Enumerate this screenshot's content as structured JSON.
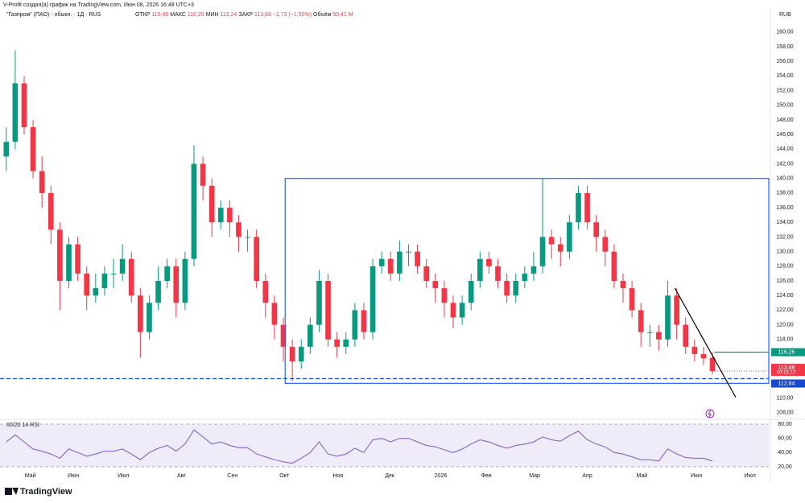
{
  "attribution": "V-Profit создал(а) график на TradingView.com, Июн 08, 2026 16:48 UTC+3",
  "logo": "TradingView",
  "chart_data": [
    {
      "type": "candlestick",
      "title": "\"Газпром\" (ПАО) - обыкн. · 1Д · RUS",
      "legend": [
        {
          "label": "ОТКР",
          "value": "115,49"
        },
        {
          "label": "МАКС",
          "value": "116,25"
        },
        {
          "label": "МИН",
          "value": "113,24"
        },
        {
          "label": "ЗАКР",
          "value": "113,68"
        }
      ],
      "change": "−1,73 (−1,50%)",
      "volume_label": "Объём",
      "volume": "50,41 M",
      "unit": "RUB",
      "up_color": "#089981",
      "down_color": "#f23645",
      "open": [
        143,
        145,
        153,
        147,
        141,
        138,
        133,
        126,
        131,
        127,
        124,
        125,
        127,
        127,
        129,
        124,
        119,
        123,
        126,
        128,
        123,
        129,
        142,
        139,
        134,
        136,
        134,
        132,
        132,
        126,
        123,
        120,
        117,
        115,
        117,
        120,
        126,
        118,
        117,
        118,
        122,
        119,
        128,
        129,
        127,
        130,
        130,
        128,
        126,
        125,
        123,
        121,
        123,
        126,
        129,
        128,
        126,
        124,
        126,
        127,
        128,
        132,
        131,
        130,
        134,
        138,
        134,
        132,
        130,
        126,
        125,
        122,
        119,
        119,
        118,
        124,
        120,
        117,
        116,
        115.49
      ],
      "high": [
        147,
        157.5,
        154,
        148,
        143,
        139,
        134,
        132,
        132,
        128,
        127,
        128,
        129,
        131,
        130,
        125,
        124,
        128,
        129,
        129,
        130,
        144.5,
        143,
        140,
        137,
        137,
        135,
        133,
        133,
        127,
        124,
        121,
        118,
        118,
        121,
        127.5,
        127,
        119,
        119,
        123,
        123,
        129,
        130,
        130,
        131.5,
        131,
        131,
        129,
        127,
        126,
        124,
        124,
        127,
        130,
        130,
        129,
        127,
        127,
        128,
        130,
        140,
        133,
        132,
        135,
        139,
        139,
        135,
        133,
        131,
        127,
        126,
        123,
        120,
        120,
        126,
        125,
        121,
        118,
        117,
        116.25
      ],
      "low": [
        141,
        144,
        146,
        140,
        136,
        131,
        122,
        125,
        126,
        122,
        123,
        124,
        125,
        126,
        123,
        115.5,
        118,
        122,
        125,
        121,
        122,
        128,
        137,
        132,
        133,
        132,
        130,
        130,
        125,
        121,
        118,
        115,
        112.3,
        114,
        116,
        119,
        117,
        115.5,
        116,
        117,
        118,
        118,
        127,
        126,
        126,
        128,
        127,
        125,
        123,
        121,
        119.5,
        120,
        122,
        125,
        127,
        125,
        123,
        123,
        125,
        126,
        127,
        129,
        128,
        129,
        133,
        133,
        130,
        128,
        125,
        123,
        121,
        117,
        117,
        116.5,
        117,
        118,
        116,
        115,
        114.5,
        113.24
      ],
      "close": [
        145,
        153,
        147,
        141,
        138,
        133,
        126,
        131,
        127,
        124,
        125,
        127,
        127,
        129,
        124,
        119,
        123,
        126,
        128,
        123,
        129,
        142,
        139,
        134,
        136,
        134,
        132,
        132,
        126,
        123,
        120,
        117,
        115,
        117,
        120,
        126,
        118,
        117,
        118,
        122,
        119,
        128,
        129,
        127,
        130,
        130,
        128,
        126,
        125,
        123,
        121,
        123,
        126,
        129,
        128,
        126,
        124,
        126,
        127,
        128,
        132,
        131,
        130,
        134,
        138,
        134,
        132,
        130,
        126,
        125,
        122,
        119,
        119,
        118,
        124,
        120,
        117,
        116,
        115.41,
        113.68
      ],
      "xlim": [
        -0.7,
        85.3
      ],
      "xticks": [
        {
          "value": 2.7,
          "label": "Май"
        },
        {
          "value": 7.5,
          "label": "Июн"
        },
        {
          "value": 13.1,
          "label": "Июл"
        },
        {
          "value": 19.6,
          "label": "Авг"
        },
        {
          "value": 25.3,
          "label": "Сен"
        },
        {
          "value": 31.1,
          "label": "Окт"
        },
        {
          "value": 37.1,
          "label": "Ноя"
        },
        {
          "value": 42.9,
          "label": "Дек"
        },
        {
          "value": 48.6,
          "label": "2026"
        },
        {
          "value": 53.7,
          "label": "Фев"
        },
        {
          "value": 59.1,
          "label": "Мар"
        },
        {
          "value": 65,
          "label": "Апр"
        },
        {
          "value": 71.1,
          "label": "Май"
        },
        {
          "value": 77.2,
          "label": "Июн"
        },
        {
          "value": 83.2,
          "label": "Июл"
        }
      ],
      "ylim": [
        107.2,
        162.4
      ],
      "yticks": [
        {
          "value": 108,
          "label": "108,00"
        },
        {
          "value": 110,
          "label": "110,00"
        },
        {
          "value": 112,
          "label": "112,00"
        },
        {
          "value": 114,
          "label": "114,00"
        },
        {
          "value": 116,
          "label": "116,00"
        },
        {
          "value": 118,
          "label": "118,00"
        },
        {
          "value": 120,
          "label": "120,00"
        },
        {
          "value": 122,
          "label": "122,00"
        },
        {
          "value": 124,
          "label": "124,00"
        },
        {
          "value": 126,
          "label": "126,00"
        },
        {
          "value": 128,
          "label": "128,00"
        },
        {
          "value": 130,
          "label": "130,00"
        },
        {
          "value": 132,
          "label": "132,00"
        },
        {
          "value": 134,
          "label": "134,00"
        },
        {
          "value": 136,
          "label": "136,00"
        },
        {
          "value": 138,
          "label": "138,00"
        },
        {
          "value": 140,
          "label": "140,00"
        },
        {
          "value": 142,
          "label": "142,00"
        },
        {
          "value": 144,
          "label": "144,00"
        },
        {
          "value": 146,
          "label": "146,00"
        },
        {
          "value": 148,
          "label": "148,00"
        },
        {
          "value": 150,
          "label": "150,00"
        },
        {
          "value": 152,
          "label": "152,00"
        },
        {
          "value": 154,
          "label": "154,00"
        },
        {
          "value": 156,
          "label": "156,00"
        },
        {
          "value": 158,
          "label": "158,00"
        },
        {
          "value": 160,
          "label": "160,00"
        }
      ],
      "price_lines": [
        {
          "value": 116.26,
          "label": "116,26",
          "color": "#089981",
          "from": 79.2
        },
        {
          "value": 112.64,
          "label": "112,64",
          "color": "#1848cc",
          "dashed": true
        }
      ],
      "last_price": {
        "value": 113.68,
        "label": "113,68",
        "countdown": "07:01:17",
        "color": "#f23645"
      },
      "rectangle": {
        "x": [
          31.2,
          85.3
        ],
        "y": [
          112,
          140
        ],
        "color": "#2962ff"
      },
      "trendline": {
        "x": [
          74.8,
          81.6
        ],
        "y": [
          125,
          110.1
        ],
        "color": "#000000"
      }
    },
    {
      "type": "line",
      "title": "80/20 14 RSI",
      "color": "#7e57c2",
      "values": [
        55,
        65,
        55,
        45,
        42,
        38,
        32,
        45,
        40,
        35,
        38,
        42,
        42,
        45,
        38,
        30,
        40,
        46,
        50,
        42,
        52,
        72,
        62,
        52,
        55,
        50,
        47,
        47,
        38,
        34,
        30,
        27,
        25,
        32,
        40,
        55,
        38,
        35,
        38,
        46,
        40,
        58,
        60,
        55,
        60,
        60,
        55,
        50,
        48,
        44,
        40,
        45,
        52,
        58,
        55,
        50,
        46,
        50,
        52,
        55,
        62,
        58,
        56,
        64,
        70,
        58,
        52,
        48,
        40,
        38,
        34,
        30,
        30,
        28,
        45,
        38,
        33,
        32,
        32,
        28
      ],
      "band": [
        20,
        80
      ],
      "ylim": [
        13.2,
        85.7
      ],
      "yticks": [
        {
          "value": 20,
          "label": "20,00"
        },
        {
          "value": 40,
          "label": "40,00"
        },
        {
          "value": 60,
          "label": "60,00"
        },
        {
          "value": 80,
          "label": "80,00"
        }
      ]
    }
  ]
}
